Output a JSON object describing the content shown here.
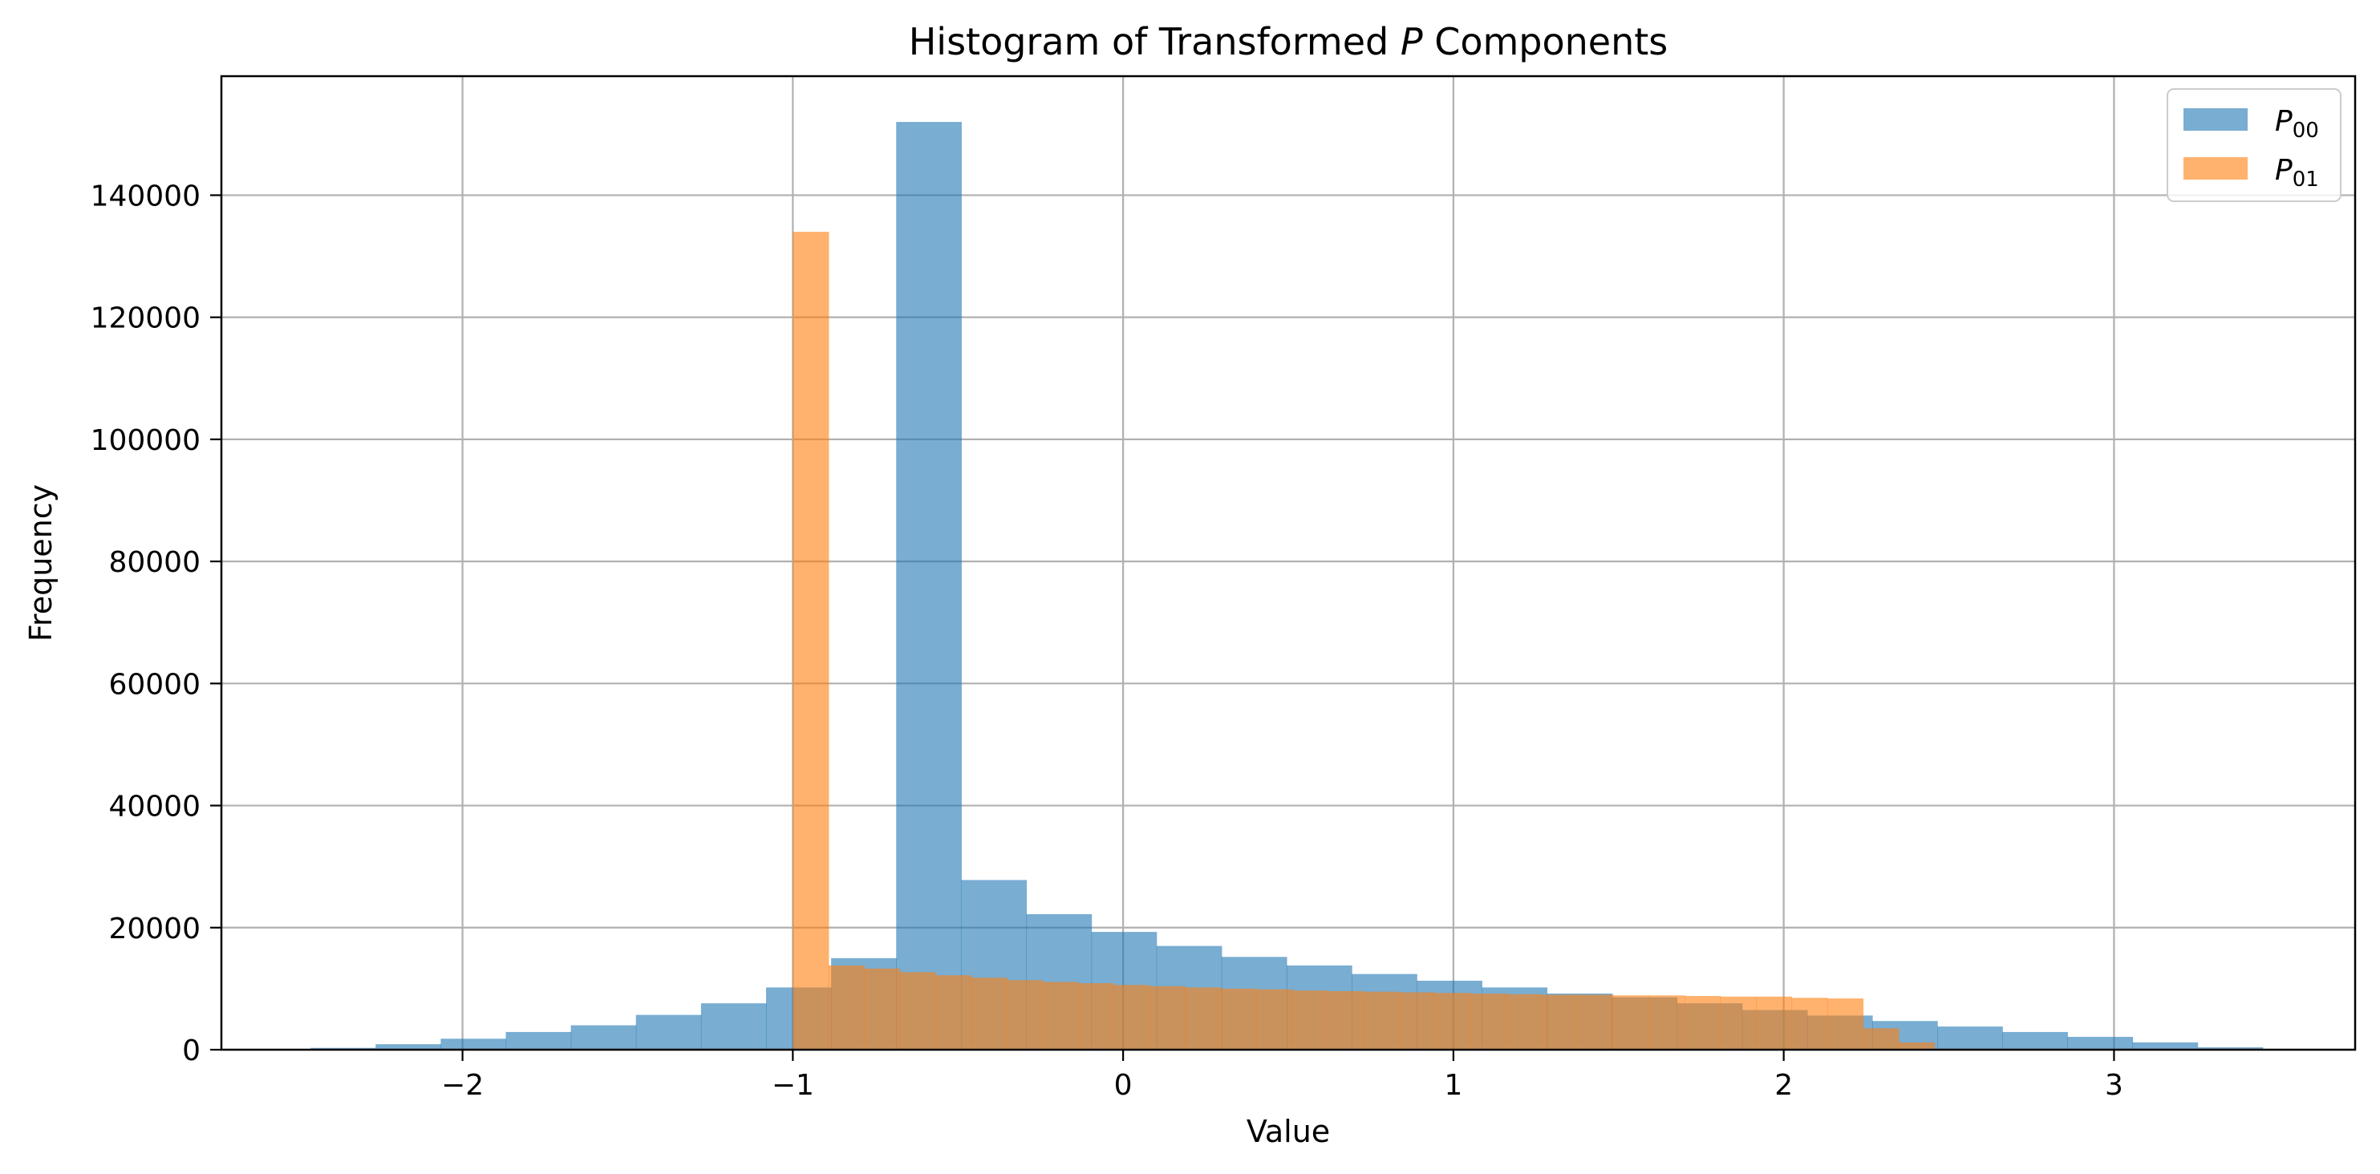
{
  "chart_data": {
    "type": "bar",
    "title": "Histogram of Transformed P Components",
    "title_parts": {
      "before": "Histogram of Transformed ",
      "symbol": "P",
      "after": " Components"
    },
    "xlabel": "Value",
    "ylabel": "Frequency",
    "xlim": [
      -2.73,
      3.73
    ],
    "ylim": [
      0,
      159500
    ],
    "xticks": [
      -2,
      -1,
      0,
      1,
      2,
      3
    ],
    "xtick_labels": [
      "−2",
      "−1",
      "0",
      "1",
      "2",
      "3"
    ],
    "yticks": [
      0,
      20000,
      40000,
      60000,
      80000,
      100000,
      120000,
      140000
    ],
    "ytick_labels": [
      "0",
      "20000",
      "40000",
      "60000",
      "80000",
      "100000",
      "120000",
      "140000"
    ],
    "grid": true,
    "legend_position": "top-right",
    "series": [
      {
        "name": "P00",
        "name_base": "P",
        "name_sub": "00",
        "color": "#1f77b4",
        "opacity": 0.6,
        "bin_start": -2.46,
        "bin_width": 0.197,
        "counts": [
          300,
          900,
          1800,
          2900,
          4000,
          5700,
          7600,
          10200,
          15000,
          152000,
          27800,
          22200,
          19300,
          17000,
          15200,
          13800,
          12400,
          11300,
          10200,
          9200,
          8600,
          7600,
          6500,
          5600,
          4700,
          3800,
          2900,
          2100,
          1200,
          400
        ]
      },
      {
        "name": "P01",
        "name_base": "P",
        "name_sub": "01",
        "color": "#ff7f0e",
        "opacity": 0.6,
        "bin_start": -1.0,
        "bin_width": 0.108,
        "counts": [
          134000,
          13800,
          13300,
          12700,
          12200,
          11800,
          11400,
          11100,
          10900,
          10600,
          10400,
          10200,
          10000,
          9900,
          9700,
          9600,
          9500,
          9400,
          9300,
          9200,
          9100,
          9000,
          9000,
          8900,
          8900,
          8800,
          8700,
          8700,
          8500,
          8400,
          3500,
          1200
        ]
      }
    ]
  }
}
